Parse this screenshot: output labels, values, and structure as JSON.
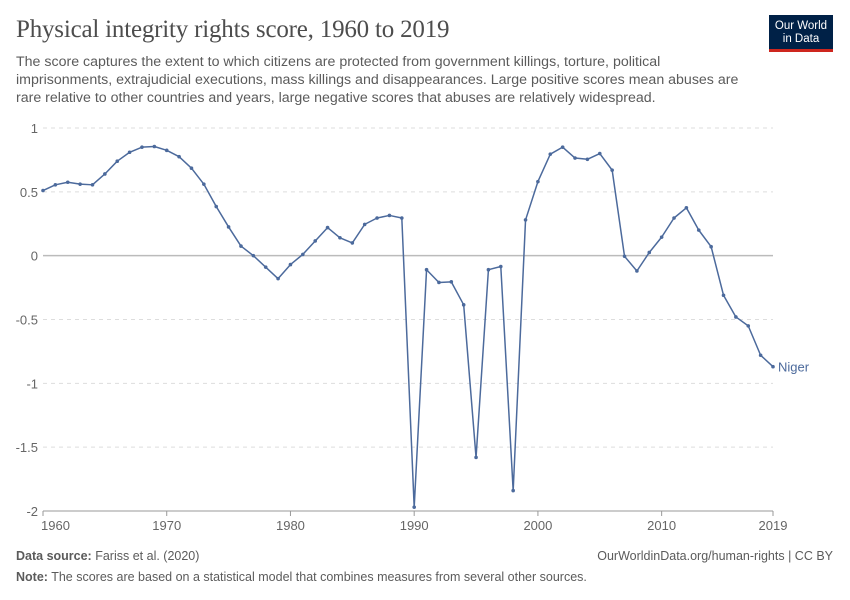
{
  "title": "Physical integrity rights score, 1960 to 2019",
  "subtitle": "The score captures the extent to which citizens are protected from government killings, torture, political imprisonments, extrajudicial executions, mass killings and disappearances. Large positive scores mean abuses are rare relative to other countries and years, large negative scores that abuses are relatively widespread.",
  "logo": {
    "line1": "Our World",
    "line2": "in Data",
    "bg_color": "#002147",
    "accent_color": "#ce261e"
  },
  "footer": {
    "source_label": "Data source:",
    "source": "Fariss et al. (2020)",
    "url_license": "OurWorldinData.org/human-rights | CC BY",
    "note_label": "Note:",
    "note": "The scores are based on a statistical model that combines measures from several other sources."
  },
  "chart_data": {
    "type": "line",
    "xlim": [
      1960,
      2019
    ],
    "ylim": [
      -2,
      1
    ],
    "x_ticks": [
      "1960",
      "1970",
      "1980",
      "1990",
      "2000",
      "2010",
      "2019"
    ],
    "y_ticks": [
      "1",
      "0.5",
      "0",
      "-0.5",
      "-1",
      "-1.5",
      "-2"
    ],
    "grid": "horizontal dashed",
    "legend": "end-of-line label",
    "series": [
      {
        "name": "Niger",
        "color": "#4c6a9c",
        "x": [
          1960,
          1961,
          1962,
          1963,
          1964,
          1965,
          1966,
          1967,
          1968,
          1969,
          1970,
          1971,
          1972,
          1973,
          1974,
          1975,
          1976,
          1977,
          1978,
          1979,
          1980,
          1981,
          1982,
          1983,
          1984,
          1985,
          1986,
          1987,
          1988,
          1989,
          1990,
          1991,
          1992,
          1993,
          1994,
          1995,
          1996,
          1997,
          1998,
          1999,
          2000,
          2001,
          2002,
          2003,
          2004,
          2005,
          2006,
          2007,
          2008,
          2009,
          2010,
          2011,
          2012,
          2013,
          2014,
          2015,
          2016,
          2017,
          2018,
          2019
        ],
        "values": [
          0.51,
          0.555,
          0.575,
          0.56,
          0.555,
          0.64,
          0.74,
          0.81,
          0.85,
          0.855,
          0.825,
          0.775,
          0.685,
          0.56,
          0.385,
          0.225,
          0.075,
          0.0,
          -0.09,
          -0.18,
          -0.07,
          0.01,
          0.115,
          0.22,
          0.14,
          0.1,
          0.245,
          0.295,
          0.315,
          0.295,
          -1.97,
          -0.11,
          -0.21,
          -0.205,
          -0.385,
          -1.58,
          -0.11,
          -0.085,
          -1.84,
          0.28,
          0.58,
          0.795,
          0.85,
          0.765,
          0.755,
          0.8,
          0.67,
          -0.005,
          -0.12,
          0.025,
          0.145,
          0.295,
          0.375,
          0.2,
          0.07,
          -0.31,
          -0.48,
          -0.55,
          -0.78,
          -0.87
        ]
      }
    ]
  }
}
